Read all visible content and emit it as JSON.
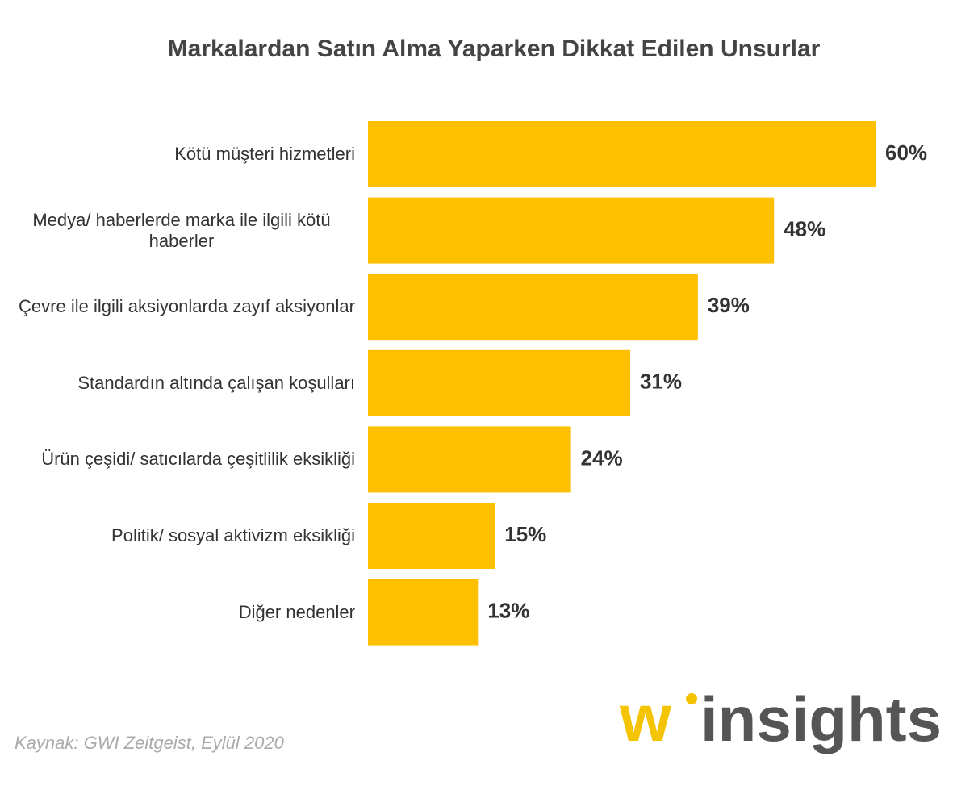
{
  "chart_data": {
    "type": "hbar",
    "title": "Markalardan Satın Alma Yaparken Dikkat Edilen Unsurlar",
    "categories": [
      "Kötü müşteri hizmetleri",
      "Medya/ haberlerde marka ile ilgili kötü haberler",
      "Çevre ile ilgili aksiyonlarda zayıf aksiyonlar",
      "Standardın altında çalışan koşulları",
      "Ürün çeşidi/ satıcılarda çeşitlilik eksikliği",
      "Politik/ sosyal aktivizm eksikliği",
      "Diğer nedenler"
    ],
    "values": [
      60,
      48,
      39,
      31,
      24,
      15,
      13
    ],
    "value_labels": [
      "60%",
      "48%",
      "39%",
      "31%",
      "24%",
      "15%",
      "13%"
    ],
    "color": "#ffc000",
    "source": "Kaynak: GWI Zeitgeist, Eylül 2020"
  },
  "logo": {
    "mark": "w",
    "text": "insights"
  }
}
